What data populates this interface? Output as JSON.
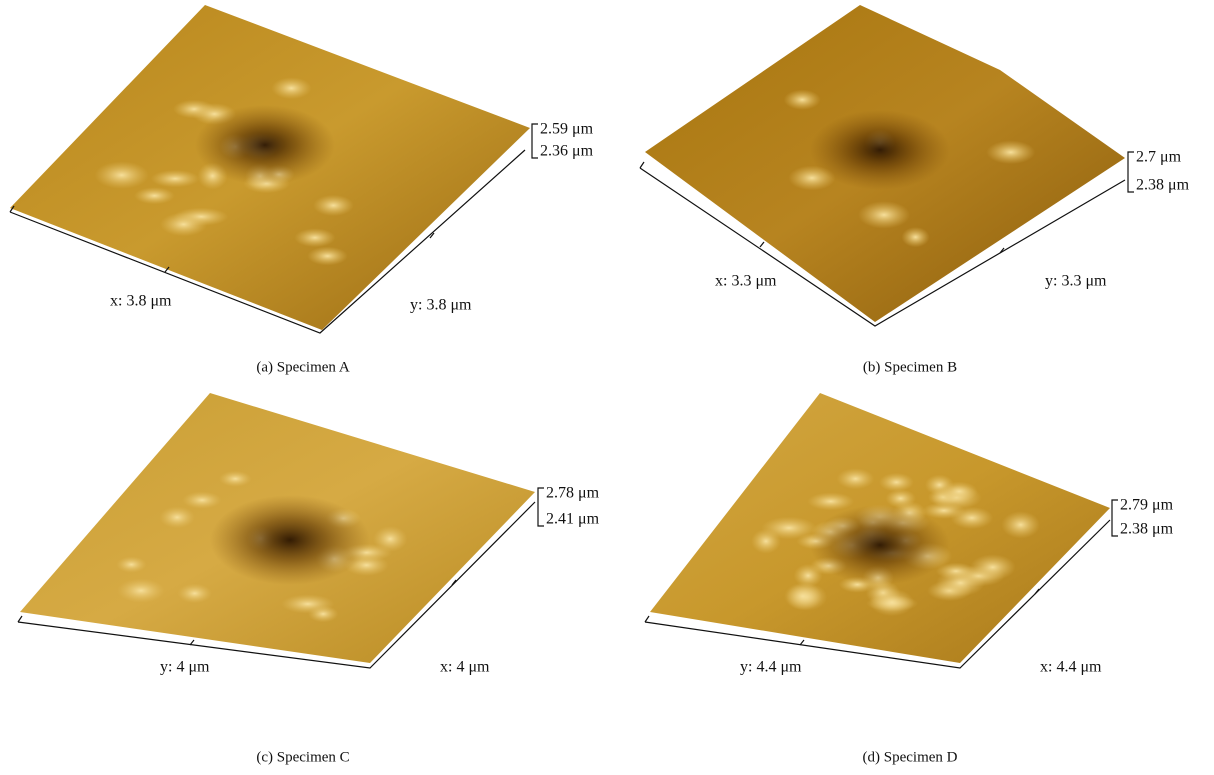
{
  "figure": {
    "panels": [
      {
        "caption": "(a)  Specimen A",
        "left_axis_label": "x: 3.8 μm",
        "right_axis_label": "y: 3.8 μm",
        "z_top_label": "2.59 μm",
        "z_bottom_label": "2.36 μm"
      },
      {
        "caption": "(b)  Specimen B",
        "left_axis_label": "x: 3.3 μm",
        "right_axis_label": "y: 3.3 μm",
        "z_top_label": "2.7 μm",
        "z_bottom_label": "2.38 μm"
      },
      {
        "caption": "(c)  Specimen C",
        "left_axis_label": "y: 4 μm",
        "right_axis_label": "x: 4 μm",
        "z_top_label": "2.78 μm",
        "z_bottom_label": "2.41 μm"
      },
      {
        "caption": "(d)  Specimen D",
        "left_axis_label": "y: 4.4 μm",
        "right_axis_label": "x: 4.4 μm",
        "z_top_label": "2.79 μm",
        "z_bottom_label": "2.38 μm"
      }
    ]
  }
}
